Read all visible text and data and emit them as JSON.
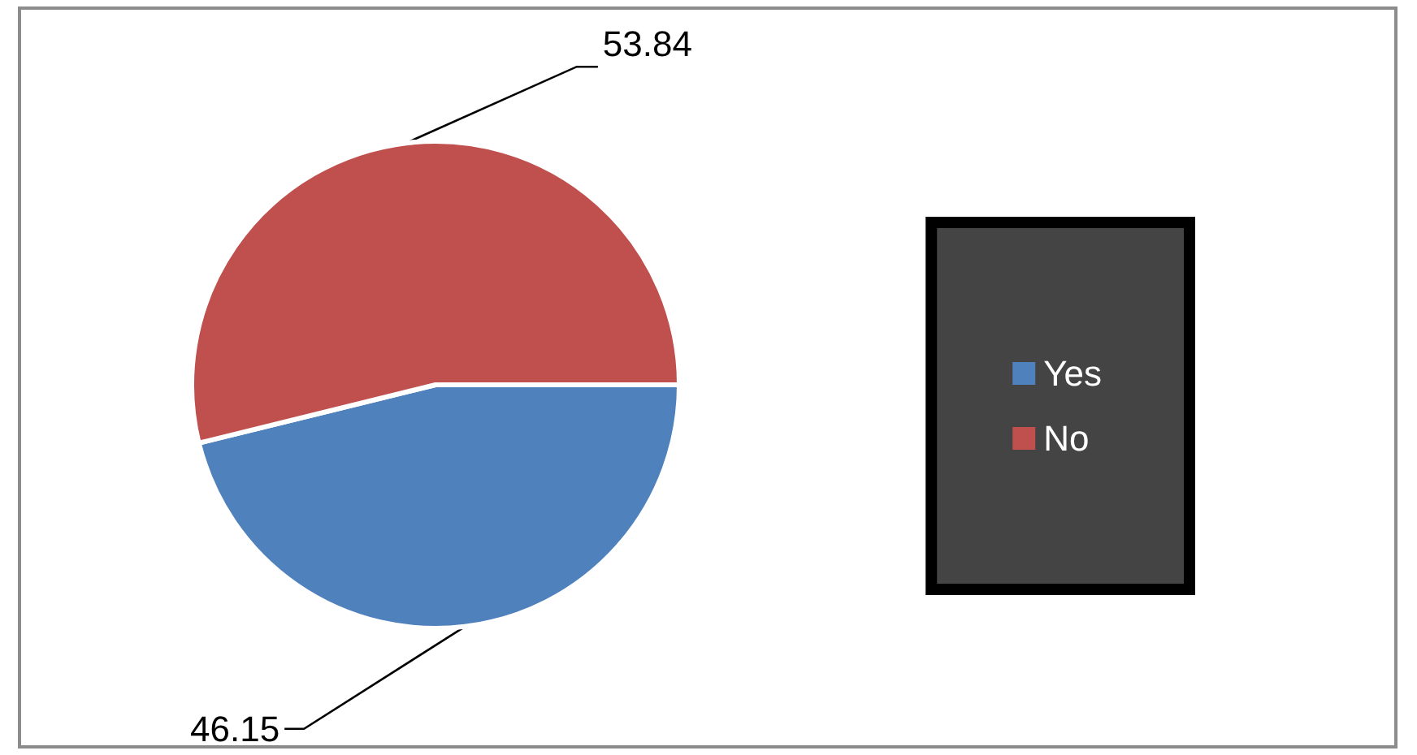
{
  "chart_data": {
    "type": "pie",
    "categories": [
      "Yes",
      "No"
    ],
    "values": [
      46.15,
      53.84
    ],
    "colors": [
      "#4f81bd",
      "#c0504d"
    ],
    "data_labels": true,
    "legend": "right"
  }
}
